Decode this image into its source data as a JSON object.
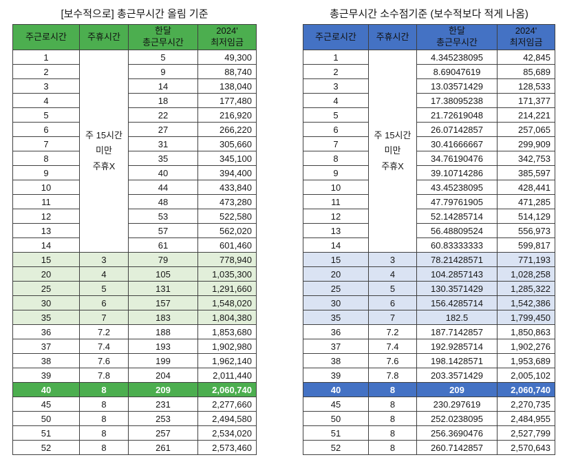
{
  "page": {
    "background": "#ffffff"
  },
  "tables": [
    {
      "id": "left",
      "title": "[보수적으로] 총근무시간 올림 기준",
      "theme": {
        "header_bg": "#4cae4f",
        "header_text": "#111111",
        "band_bg": "#e2efda",
        "strong_bg": "#4cae4f",
        "strong_text": "#ffffff"
      },
      "columns": [
        [
          "주근로시간"
        ],
        [
          "주휴시간"
        ],
        [
          "한달",
          "총근무시간"
        ],
        [
          "2024'",
          "최저임금"
        ]
      ],
      "column_keys": [
        "weekly-work-hours",
        "weekly-rest-hours",
        "monthly-total-hours",
        "min-wage-2024"
      ],
      "merged_rest": {
        "lines": [
          "주 15시간",
          "미만",
          "주휴X"
        ],
        "span": 14
      },
      "band_weeks": [
        "15",
        "20",
        "25",
        "30",
        "35"
      ],
      "strong_week": "40",
      "rows": [
        {
          "week": "1",
          "rest": "",
          "month": "5",
          "wage": "49,300"
        },
        {
          "week": "2",
          "rest": "",
          "month": "9",
          "wage": "88,740"
        },
        {
          "week": "3",
          "rest": "",
          "month": "14",
          "wage": "138,040"
        },
        {
          "week": "4",
          "rest": "",
          "month": "18",
          "wage": "177,480"
        },
        {
          "week": "5",
          "rest": "",
          "month": "22",
          "wage": "216,920"
        },
        {
          "week": "6",
          "rest": "",
          "month": "27",
          "wage": "266,220"
        },
        {
          "week": "7",
          "rest": "",
          "month": "31",
          "wage": "305,660"
        },
        {
          "week": "8",
          "rest": "",
          "month": "35",
          "wage": "345,100"
        },
        {
          "week": "9",
          "rest": "",
          "month": "40",
          "wage": "394,400"
        },
        {
          "week": "10",
          "rest": "",
          "month": "44",
          "wage": "433,840"
        },
        {
          "week": "11",
          "rest": "",
          "month": "48",
          "wage": "473,280"
        },
        {
          "week": "12",
          "rest": "",
          "month": "53",
          "wage": "522,580"
        },
        {
          "week": "13",
          "rest": "",
          "month": "57",
          "wage": "562,020"
        },
        {
          "week": "14",
          "rest": "",
          "month": "61",
          "wage": "601,460"
        },
        {
          "week": "15",
          "rest": "3",
          "month": "79",
          "wage": "778,940"
        },
        {
          "week": "20",
          "rest": "4",
          "month": "105",
          "wage": "1,035,300"
        },
        {
          "week": "25",
          "rest": "5",
          "month": "131",
          "wage": "1,291,660"
        },
        {
          "week": "30",
          "rest": "6",
          "month": "157",
          "wage": "1,548,020"
        },
        {
          "week": "35",
          "rest": "7",
          "month": "183",
          "wage": "1,804,380"
        },
        {
          "week": "36",
          "rest": "7.2",
          "month": "188",
          "wage": "1,853,680"
        },
        {
          "week": "37",
          "rest": "7.4",
          "month": "193",
          "wage": "1,902,980"
        },
        {
          "week": "38",
          "rest": "7.6",
          "month": "199",
          "wage": "1,962,140"
        },
        {
          "week": "39",
          "rest": "7.8",
          "month": "204",
          "wage": "2,011,440"
        },
        {
          "week": "40",
          "rest": "8",
          "month": "209",
          "wage": "2,060,740"
        },
        {
          "week": "45",
          "rest": "8",
          "month": "231",
          "wage": "2,277,660"
        },
        {
          "week": "50",
          "rest": "8",
          "month": "253",
          "wage": "2,494,580"
        },
        {
          "week": "51",
          "rest": "8",
          "month": "257",
          "wage": "2,534,020"
        },
        {
          "week": "52",
          "rest": "8",
          "month": "261",
          "wage": "2,573,460"
        }
      ]
    },
    {
      "id": "right",
      "title": "총근무시간 소수점기준 (보수적보다 적게 나옴)",
      "theme": {
        "header_bg": "#4472c4",
        "header_text": "#111111",
        "band_bg": "#dae3f3",
        "strong_bg": "#4472c4",
        "strong_text": "#ffffff"
      },
      "columns": [
        [
          "주근로시간"
        ],
        [
          "주휴시간"
        ],
        [
          "한달",
          "총근무시간"
        ],
        [
          "2024'",
          "최저임금"
        ]
      ],
      "column_keys": [
        "weekly-work-hours",
        "weekly-rest-hours",
        "monthly-total-hours",
        "min-wage-2024"
      ],
      "merged_rest": {
        "lines": [
          "주 15시간",
          "미만",
          "주휴X"
        ],
        "span": 14
      },
      "band_weeks": [
        "15",
        "20",
        "25",
        "30",
        "35"
      ],
      "strong_week": "40",
      "rows": [
        {
          "week": "1",
          "rest": "",
          "month": "4.345238095",
          "wage": "42,845"
        },
        {
          "week": "2",
          "rest": "",
          "month": "8.69047619",
          "wage": "85,689"
        },
        {
          "week": "3",
          "rest": "",
          "month": "13.03571429",
          "wage": "128,533"
        },
        {
          "week": "4",
          "rest": "",
          "month": "17.38095238",
          "wage": "171,377"
        },
        {
          "week": "5",
          "rest": "",
          "month": "21.72619048",
          "wage": "214,221"
        },
        {
          "week": "6",
          "rest": "",
          "month": "26.07142857",
          "wage": "257,065"
        },
        {
          "week": "7",
          "rest": "",
          "month": "30.41666667",
          "wage": "299,909"
        },
        {
          "week": "8",
          "rest": "",
          "month": "34.76190476",
          "wage": "342,753"
        },
        {
          "week": "9",
          "rest": "",
          "month": "39.10714286",
          "wage": "385,597"
        },
        {
          "week": "10",
          "rest": "",
          "month": "43.45238095",
          "wage": "428,441"
        },
        {
          "week": "11",
          "rest": "",
          "month": "47.79761905",
          "wage": "471,285"
        },
        {
          "week": "12",
          "rest": "",
          "month": "52.14285714",
          "wage": "514,129"
        },
        {
          "week": "13",
          "rest": "",
          "month": "56.48809524",
          "wage": "556,973"
        },
        {
          "week": "14",
          "rest": "",
          "month": "60.83333333",
          "wage": "599,817"
        },
        {
          "week": "15",
          "rest": "3",
          "month": "78.21428571",
          "wage": "771,193"
        },
        {
          "week": "20",
          "rest": "4",
          "month": "104.2857143",
          "wage": "1,028,258"
        },
        {
          "week": "25",
          "rest": "5",
          "month": "130.3571429",
          "wage": "1,285,322"
        },
        {
          "week": "30",
          "rest": "6",
          "month": "156.4285714",
          "wage": "1,542,386"
        },
        {
          "week": "35",
          "rest": "7",
          "month": "182.5",
          "wage": "1,799,450"
        },
        {
          "week": "36",
          "rest": "7.2",
          "month": "187.7142857",
          "wage": "1,850,863"
        },
        {
          "week": "37",
          "rest": "7.4",
          "month": "192.9285714",
          "wage": "1,902,276"
        },
        {
          "week": "38",
          "rest": "7.6",
          "month": "198.1428571",
          "wage": "1,953,689"
        },
        {
          "week": "39",
          "rest": "7.8",
          "month": "203.3571429",
          "wage": "2,005,102"
        },
        {
          "week": "40",
          "rest": "8",
          "month": "209",
          "wage": "2,060,740"
        },
        {
          "week": "45",
          "rest": "8",
          "month": "230.297619",
          "wage": "2,270,735"
        },
        {
          "week": "50",
          "rest": "8",
          "month": "252.0238095",
          "wage": "2,484,955"
        },
        {
          "week": "51",
          "rest": "8",
          "month": "256.3690476",
          "wage": "2,527,799"
        },
        {
          "week": "52",
          "rest": "8",
          "month": "260.7142857",
          "wage": "2,570,643"
        }
      ]
    }
  ]
}
